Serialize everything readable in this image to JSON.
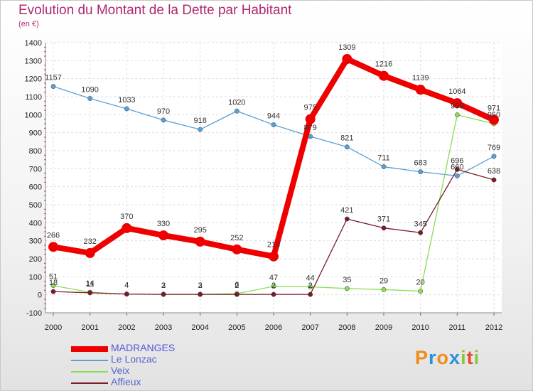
{
  "title": "Evolution du Montant de la Dette par Habitant",
  "subtitle": "(en €)",
  "logo": {
    "letters": [
      "P",
      "r",
      "o",
      "x",
      "i",
      "t",
      "i"
    ],
    "colors": [
      "#f08c1a",
      "#2e8fd8",
      "#f08c1a",
      "#2e8fd8",
      "#8cc63f",
      "#e84a2e",
      "#8cc63f"
    ]
  },
  "chart_data": {
    "type": "line",
    "x": [
      "2000",
      "2001",
      "2002",
      "2003",
      "2004",
      "2005",
      "2006",
      "2007",
      "2008",
      "2009",
      "2010",
      "2011",
      "2012"
    ],
    "ylim": [
      -100,
      1400
    ],
    "yticks": [
      "-100",
      "0",
      "100",
      "200",
      "300",
      "400",
      "500",
      "600",
      "700",
      "800",
      "900",
      "1000",
      "1100",
      "1200",
      "1300",
      "1400"
    ],
    "grid": true,
    "legend_position": "bottom-left",
    "series": [
      {
        "name": "MADRANGES",
        "color": "#ee0000",
        "width": 8,
        "labels": true,
        "values": [
          266,
          232,
          370,
          330,
          295,
          252,
          213,
          975,
          1309,
          1216,
          1139,
          1064,
          971
        ]
      },
      {
        "name": "Le Lonzac",
        "color": "#5a9fd4",
        "width": 1.3,
        "labels": true,
        "values": [
          1157,
          1090,
          1033,
          970,
          918,
          1020,
          944,
          879,
          821,
          711,
          683,
          660,
          769
        ]
      },
      {
        "name": "Veix",
        "color": "#88dd55",
        "width": 1.3,
        "labels": true,
        "values": [
          51,
          14,
          4,
          3,
          3,
          6,
          47,
          44,
          35,
          29,
          20,
          999,
          950
        ]
      },
      {
        "name": "Affieux",
        "color": "#7a1a2a",
        "width": 1.3,
        "labels": true,
        "values": [
          18,
          11,
          4,
          2,
          2,
          2,
          2,
          2,
          421,
          371,
          345,
          696,
          638
        ]
      }
    ]
  }
}
